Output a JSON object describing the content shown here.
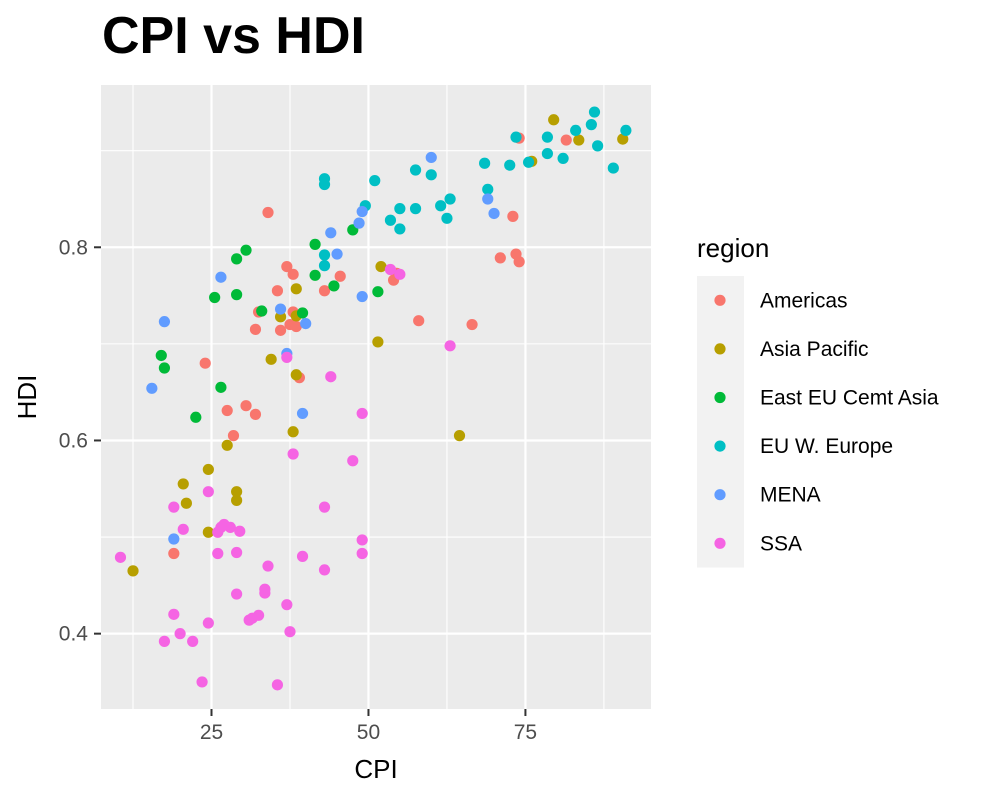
{
  "chart_data": {
    "type": "scatter",
    "title": "CPI vs HDI",
    "xlabel": "CPI",
    "ylabel": "HDI",
    "xlim": [
      7.4,
      95.0
    ],
    "ylim": [
      0.322,
      0.968
    ],
    "x_ticks": [
      25,
      50,
      75
    ],
    "x_tick_labels": [
      "25",
      "50",
      "75"
    ],
    "y_ticks": [
      0.4,
      0.6,
      0.8
    ],
    "y_tick_labels": [
      "0.4",
      "0.6",
      "0.8"
    ],
    "grid": true,
    "legend": {
      "title": "region",
      "placement": "right"
    },
    "series": [
      {
        "name": "Americas",
        "color": "#F8766D",
        "points": [
          [
            34.0,
            0.836
          ],
          [
            74.0,
            0.913
          ],
          [
            81.5,
            0.911
          ],
          [
            73.0,
            0.832
          ],
          [
            71.0,
            0.789
          ],
          [
            74.0,
            0.785
          ],
          [
            73.5,
            0.793
          ],
          [
            66.5,
            0.72
          ],
          [
            58.0,
            0.724
          ],
          [
            54.0,
            0.766
          ],
          [
            54.5,
            0.773
          ],
          [
            45.5,
            0.77
          ],
          [
            43.0,
            0.755
          ],
          [
            37.0,
            0.78
          ],
          [
            38.0,
            0.772
          ],
          [
            35.5,
            0.755
          ],
          [
            36.0,
            0.714
          ],
          [
            37.5,
            0.72
          ],
          [
            38.0,
            0.733
          ],
          [
            38.5,
            0.718
          ],
          [
            32.5,
            0.733
          ],
          [
            32.0,
            0.715
          ],
          [
            39.0,
            0.665
          ],
          [
            24.0,
            0.68
          ],
          [
            27.5,
            0.631
          ],
          [
            30.5,
            0.636
          ],
          [
            32.0,
            0.627
          ],
          [
            28.5,
            0.605
          ],
          [
            19.0,
            0.483
          ]
        ]
      },
      {
        "name": "Asia Pacific",
        "color": "#B79F00",
        "points": [
          [
            79.5,
            0.932
          ],
          [
            83.5,
            0.911
          ],
          [
            90.5,
            0.912
          ],
          [
            76.0,
            0.889
          ],
          [
            52.0,
            0.78
          ],
          [
            51.5,
            0.702
          ],
          [
            64.5,
            0.605
          ],
          [
            38.5,
            0.757
          ],
          [
            36.0,
            0.728
          ],
          [
            38.5,
            0.729
          ],
          [
            34.5,
            0.684
          ],
          [
            38.5,
            0.668
          ],
          [
            38.0,
            0.609
          ],
          [
            27.5,
            0.595
          ],
          [
            24.5,
            0.57
          ],
          [
            20.5,
            0.555
          ],
          [
            21.0,
            0.535
          ],
          [
            29.0,
            0.547
          ],
          [
            29.0,
            0.538
          ],
          [
            24.5,
            0.505
          ],
          [
            12.5,
            0.465
          ]
        ]
      },
      {
        "name": "East EU Cemt Asia",
        "color": "#00BA38",
        "points": [
          [
            30.5,
            0.797
          ],
          [
            41.5,
            0.803
          ],
          [
            29.0,
            0.788
          ],
          [
            25.5,
            0.748
          ],
          [
            29.0,
            0.751
          ],
          [
            41.5,
            0.771
          ],
          [
            47.5,
            0.818
          ],
          [
            44.5,
            0.76
          ],
          [
            51.5,
            0.754
          ],
          [
            33.0,
            0.734
          ],
          [
            39.5,
            0.732
          ],
          [
            17.0,
            0.688
          ],
          [
            17.5,
            0.675
          ],
          [
            26.5,
            0.655
          ],
          [
            22.5,
            0.624
          ]
        ]
      },
      {
        "name": "EU W. Europe",
        "color": "#00BFC4",
        "points": [
          [
            86.0,
            0.94
          ],
          [
            91.0,
            0.921
          ],
          [
            83.0,
            0.921
          ],
          [
            85.5,
            0.927
          ],
          [
            78.5,
            0.914
          ],
          [
            73.5,
            0.914
          ],
          [
            75.5,
            0.888
          ],
          [
            86.5,
            0.905
          ],
          [
            78.5,
            0.897
          ],
          [
            81.0,
            0.892
          ],
          [
            72.5,
            0.885
          ],
          [
            89.0,
            0.882
          ],
          [
            68.5,
            0.887
          ],
          [
            69.0,
            0.86
          ],
          [
            57.5,
            0.88
          ],
          [
            60.0,
            0.875
          ],
          [
            51.0,
            0.869
          ],
          [
            43.0,
            0.871
          ],
          [
            43.0,
            0.865
          ],
          [
            63.0,
            0.85
          ],
          [
            61.5,
            0.843
          ],
          [
            55.0,
            0.84
          ],
          [
            57.5,
            0.84
          ],
          [
            49.5,
            0.843
          ],
          [
            62.5,
            0.83
          ],
          [
            53.5,
            0.828
          ],
          [
            55.0,
            0.819
          ],
          [
            43.0,
            0.792
          ],
          [
            43.0,
            0.781
          ]
        ]
      },
      {
        "name": "MENA",
        "color": "#619CFF",
        "points": [
          [
            60.0,
            0.893
          ],
          [
            69.0,
            0.85
          ],
          [
            70.0,
            0.835
          ],
          [
            49.0,
            0.837
          ],
          [
            48.5,
            0.825
          ],
          [
            44.0,
            0.815
          ],
          [
            45.0,
            0.793
          ],
          [
            49.0,
            0.749
          ],
          [
            26.5,
            0.769
          ],
          [
            17.5,
            0.723
          ],
          [
            36.0,
            0.736
          ],
          [
            40.0,
            0.721
          ],
          [
            37.0,
            0.69
          ],
          [
            15.5,
            0.654
          ],
          [
            39.5,
            0.628
          ],
          [
            19.0,
            0.498
          ]
        ]
      },
      {
        "name": "SSA",
        "color": "#F564E3",
        "points": [
          [
            53.5,
            0.777
          ],
          [
            55.0,
            0.772
          ],
          [
            63.0,
            0.698
          ],
          [
            37.0,
            0.686
          ],
          [
            44.0,
            0.666
          ],
          [
            49.0,
            0.628
          ],
          [
            38.0,
            0.586
          ],
          [
            47.5,
            0.579
          ],
          [
            43.0,
            0.531
          ],
          [
            49.0,
            0.497
          ],
          [
            49.0,
            0.483
          ],
          [
            39.5,
            0.48
          ],
          [
            43.0,
            0.466
          ],
          [
            24.5,
            0.547
          ],
          [
            19.0,
            0.531
          ],
          [
            20.5,
            0.508
          ],
          [
            26.5,
            0.51
          ],
          [
            27.0,
            0.513
          ],
          [
            28.0,
            0.51
          ],
          [
            26.0,
            0.505
          ],
          [
            29.5,
            0.506
          ],
          [
            26.0,
            0.483
          ],
          [
            29.0,
            0.484
          ],
          [
            10.5,
            0.479
          ],
          [
            34.0,
            0.47
          ],
          [
            33.5,
            0.446
          ],
          [
            33.5,
            0.442
          ],
          [
            29.0,
            0.441
          ],
          [
            37.0,
            0.43
          ],
          [
            19.0,
            0.42
          ],
          [
            31.0,
            0.414
          ],
          [
            32.5,
            0.419
          ],
          [
            31.5,
            0.416
          ],
          [
            24.5,
            0.411
          ],
          [
            20.0,
            0.4
          ],
          [
            17.5,
            0.392
          ],
          [
            22.0,
            0.392
          ],
          [
            37.5,
            0.402
          ],
          [
            23.5,
            0.35
          ],
          [
            35.5,
            0.347
          ]
        ]
      }
    ]
  }
}
